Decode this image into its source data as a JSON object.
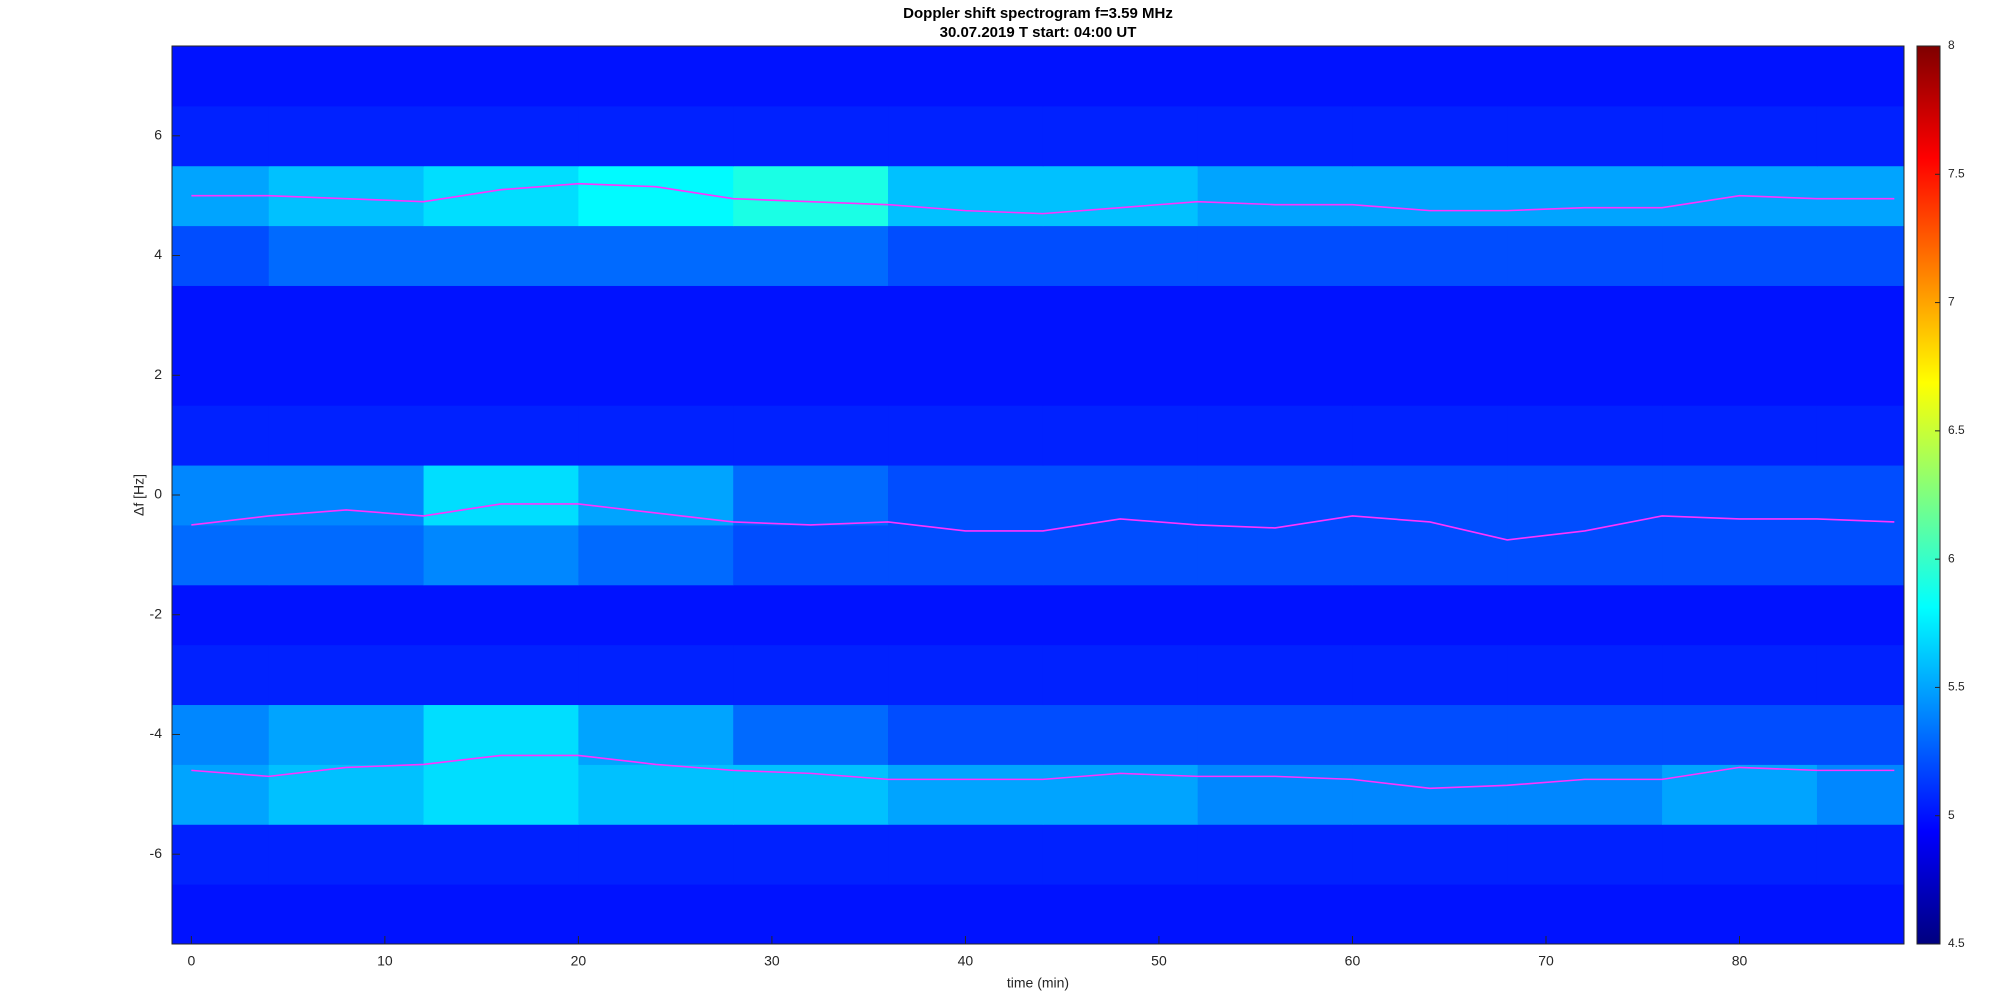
{
  "chart_data": {
    "type": "spectrogram",
    "title": "Doppler shift spectrogram f=3.59 MHz",
    "subtitle": "30.07.2019    T start: 04:00 UT",
    "xlabel": "time (min)",
    "ylabel": "Δf [Hz]",
    "xlim": [
      -1,
      88.5
    ],
    "ylim": [
      -7.5,
      7.5
    ],
    "xticks": [
      0,
      10,
      20,
      30,
      40,
      50,
      60,
      70,
      80
    ],
    "yticks": [
      -6,
      -4,
      -2,
      0,
      2,
      4,
      6
    ],
    "colormap": "jet",
    "clim": [
      4.5,
      8
    ],
    "cticks": [
      4.5,
      5,
      5.5,
      6,
      6.5,
      7,
      7.5,
      8
    ],
    "zx": [
      0,
      8,
      16,
      24,
      32,
      40,
      48,
      56,
      64,
      72,
      80,
      88
    ],
    "zy": [
      -7,
      -6,
      -5,
      -4,
      -3,
      -2,
      -1,
      0,
      1,
      2,
      3,
      4,
      5,
      6,
      7
    ],
    "z": [
      [
        5.0,
        5.0,
        5.0,
        5.0,
        5.0,
        5.0,
        5.0,
        5.0,
        5.0,
        5.0,
        5.0,
        5.0
      ],
      [
        5.05,
        5.05,
        5.05,
        5.05,
        5.05,
        5.05,
        5.05,
        5.05,
        5.05,
        5.05,
        5.05,
        5.05
      ],
      [
        5.5,
        5.6,
        5.7,
        5.6,
        5.6,
        5.5,
        5.5,
        5.4,
        5.4,
        5.4,
        5.5,
        5.4
      ],
      [
        5.4,
        5.5,
        5.7,
        5.5,
        5.3,
        5.2,
        5.2,
        5.2,
        5.2,
        5.2,
        5.2,
        5.2
      ],
      [
        5.05,
        5.05,
        5.05,
        5.05,
        5.05,
        5.05,
        5.05,
        5.05,
        5.05,
        5.05,
        5.05,
        5.05
      ],
      [
        5.0,
        5.0,
        5.0,
        5.0,
        5.0,
        5.0,
        5.0,
        5.0,
        5.0,
        5.0,
        5.0,
        5.0
      ],
      [
        5.3,
        5.3,
        5.4,
        5.3,
        5.2,
        5.2,
        5.2,
        5.2,
        5.2,
        5.2,
        5.2,
        5.2
      ],
      [
        5.4,
        5.4,
        5.7,
        5.5,
        5.3,
        5.2,
        5.2,
        5.2,
        5.2,
        5.2,
        5.2,
        5.2
      ],
      [
        5.05,
        5.05,
        5.05,
        5.05,
        5.05,
        5.05,
        5.05,
        5.05,
        5.05,
        5.05,
        5.05,
        5.05
      ],
      [
        5.0,
        5.0,
        5.0,
        5.0,
        5.0,
        5.0,
        5.0,
        5.0,
        5.0,
        5.0,
        5.0,
        5.0
      ],
      [
        5.0,
        5.0,
        5.0,
        5.0,
        5.0,
        5.0,
        5.0,
        5.0,
        5.0,
        5.0,
        5.0,
        5.0
      ],
      [
        5.2,
        5.3,
        5.3,
        5.3,
        5.3,
        5.2,
        5.2,
        5.2,
        5.2,
        5.2,
        5.2,
        5.2
      ],
      [
        5.5,
        5.6,
        5.7,
        5.8,
        5.9,
        5.6,
        5.6,
        5.5,
        5.5,
        5.5,
        5.5,
        5.5
      ],
      [
        5.05,
        5.05,
        5.05,
        5.05,
        5.05,
        5.05,
        5.05,
        5.05,
        5.05,
        5.05,
        5.05,
        5.05
      ],
      [
        5.0,
        5.0,
        5.0,
        5.0,
        5.0,
        5.0,
        5.0,
        5.0,
        5.0,
        5.0,
        5.0,
        5.0
      ]
    ],
    "x": [
      0,
      4,
      8,
      12,
      16,
      20,
      24,
      28,
      32,
      36,
      40,
      44,
      48,
      52,
      56,
      60,
      64,
      68,
      72,
      76,
      80,
      84,
      88
    ],
    "series": [
      {
        "color": "#ff33ff",
        "values": [
          5.0,
          5.0,
          4.95,
          4.9,
          5.1,
          5.2,
          5.15,
          4.95,
          4.9,
          4.85,
          4.75,
          4.7,
          4.8,
          4.9,
          4.85,
          4.85,
          4.75,
          4.75,
          4.8,
          4.8,
          5.0,
          4.95,
          4.95
        ]
      },
      {
        "color": "#ff33ff",
        "values": [
          -0.5,
          -0.35,
          -0.25,
          -0.35,
          -0.15,
          -0.15,
          -0.3,
          -0.45,
          -0.5,
          -0.45,
          -0.6,
          -0.6,
          -0.4,
          -0.5,
          -0.55,
          -0.35,
          -0.45,
          -0.75,
          -0.6,
          -0.35,
          -0.4,
          -0.4,
          -0.45
        ]
      },
      {
        "color": "#ff33ff",
        "values": [
          -4.6,
          -4.7,
          -4.55,
          -4.5,
          -4.35,
          -4.35,
          -4.5,
          -4.6,
          -4.65,
          -4.75,
          -4.75,
          -4.75,
          -4.65,
          -4.7,
          -4.7,
          -4.75,
          -4.9,
          -4.85,
          -4.75,
          -4.75,
          -4.55,
          -4.6,
          -4.6
        ]
      }
    ]
  }
}
